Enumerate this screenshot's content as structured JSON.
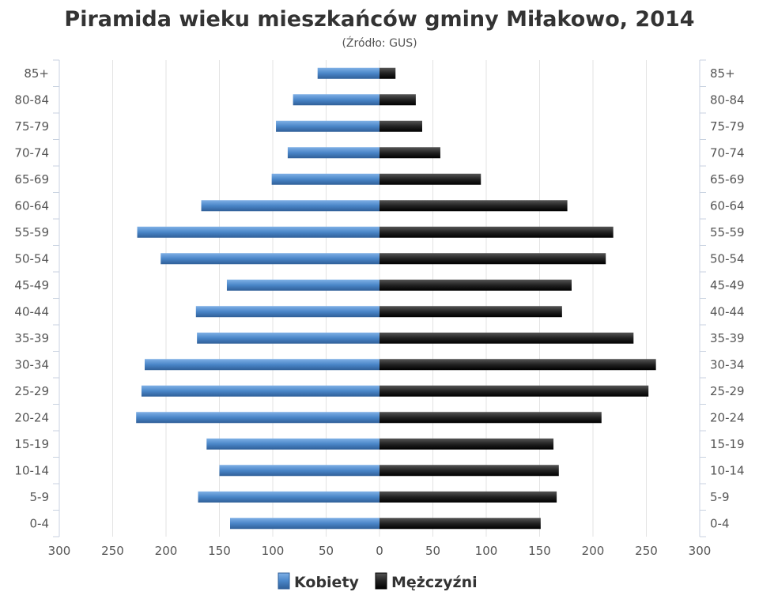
{
  "chart_data": {
    "type": "bar",
    "orientation": "horizontal-population-pyramid",
    "title": "Piramida wieku mieszkańców gminy Miłakowo, 2014",
    "subtitle": "(Źródło: GUS)",
    "categories": [
      "85+",
      "80-84",
      "75-79",
      "70-74",
      "65-69",
      "60-64",
      "55-59",
      "50-54",
      "45-49",
      "40-44",
      "35-39",
      "30-34",
      "25-29",
      "20-24",
      "15-19",
      "10-14",
      "5-9",
      "0-4"
    ],
    "series": [
      {
        "name": "Kobiety",
        "color": "#4a86c8",
        "side": "left",
        "values": [
          58,
          81,
          97,
          86,
          101,
          167,
          227,
          205,
          143,
          172,
          171,
          220,
          223,
          228,
          162,
          150,
          170,
          140
        ]
      },
      {
        "name": "Mężczyźni",
        "color": "#222222",
        "side": "right",
        "values": [
          15,
          34,
          40,
          57,
          95,
          176,
          219,
          212,
          180,
          171,
          238,
          259,
          252,
          208,
          163,
          168,
          166,
          151
        ]
      }
    ],
    "xlim": [
      -300,
      300
    ],
    "xticks": [
      "300",
      "250",
      "200",
      "150",
      "100",
      "50",
      "0",
      "50",
      "100",
      "150",
      "200",
      "250",
      "300"
    ],
    "grid": true,
    "legend": "bottom-center"
  }
}
